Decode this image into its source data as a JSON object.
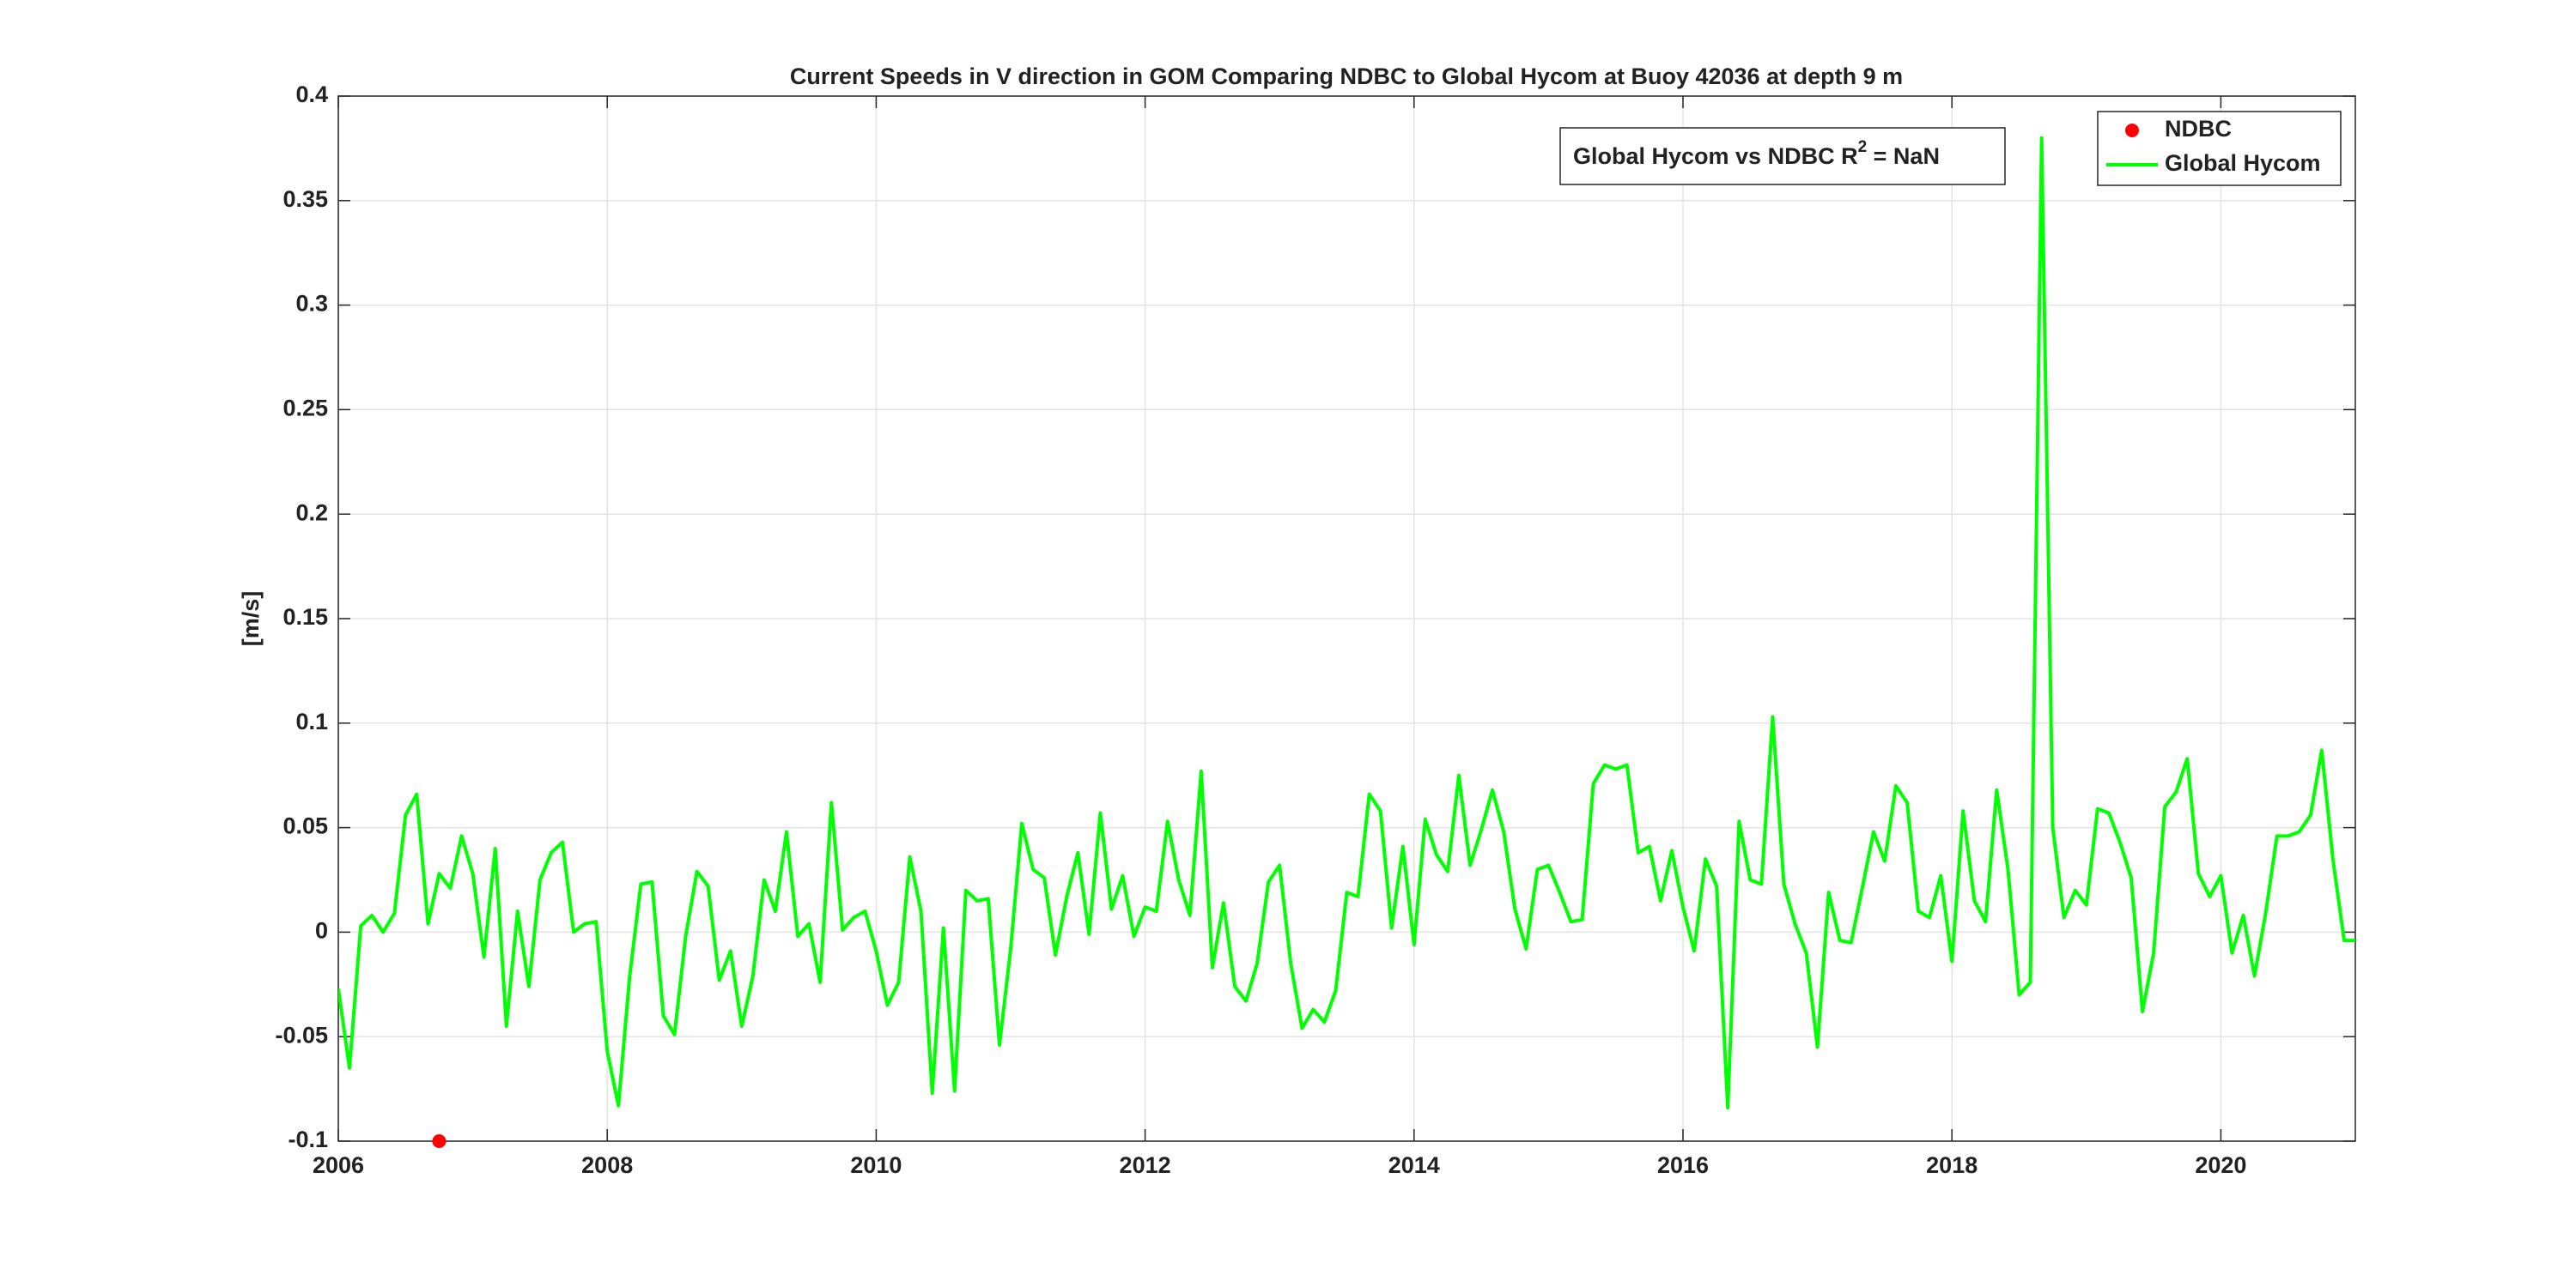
{
  "chart_data": {
    "type": "line",
    "title": "Current Speeds in V direction in GOM Comparing NDBC to Global Hycom at Buoy  42036  at depth  9 m",
    "y_label": "[m/s]",
    "annotation": {
      "text": "Global Hycom vs NDBC R",
      "superscript": "2",
      "suffix": " = NaN"
    },
    "xlim": [
      2006,
      2021
    ],
    "xticks": [
      2006,
      2008,
      2010,
      2012,
      2014,
      2016,
      2018,
      2020
    ],
    "ylim": [
      -0.1,
      0.4
    ],
    "yticks": [
      -0.1,
      -0.05,
      0,
      0.05,
      0.1,
      0.15,
      0.2,
      0.25,
      0.3,
      0.35,
      0.4
    ],
    "grid": true,
    "legend": "top-right",
    "series": [
      {
        "name": "NDBC",
        "color": "#ff0000",
        "style": "dot",
        "x": [
          2006.75
        ],
        "values": [
          -0.1
        ]
      },
      {
        "name": "Global Hycom",
        "color": "#00ff00",
        "style": "line",
        "x": [
          2006,
          2006.083,
          2006.167,
          2006.25,
          2006.333,
          2006.417,
          2006.5,
          2006.583,
          2006.667,
          2006.75,
          2006.833,
          2006.917,
          2007,
          2007.083,
          2007.167,
          2007.25,
          2007.333,
          2007.417,
          2007.5,
          2007.583,
          2007.667,
          2007.75,
          2007.833,
          2007.917,
          2008,
          2008.083,
          2008.167,
          2008.25,
          2008.333,
          2008.417,
          2008.5,
          2008.583,
          2008.667,
          2008.75,
          2008.833,
          2008.917,
          2009,
          2009.083,
          2009.167,
          2009.25,
          2009.333,
          2009.417,
          2009.5,
          2009.583,
          2009.667,
          2009.75,
          2009.833,
          2009.917,
          2010,
          2010.083,
          2010.167,
          2010.25,
          2010.333,
          2010.417,
          2010.5,
          2010.583,
          2010.667,
          2010.75,
          2010.833,
          2010.917,
          2011,
          2011.083,
          2011.167,
          2011.25,
          2011.333,
          2011.417,
          2011.5,
          2011.583,
          2011.667,
          2011.75,
          2011.833,
          2011.917,
          2012,
          2012.083,
          2012.167,
          2012.25,
          2012.333,
          2012.417,
          2012.5,
          2012.583,
          2012.667,
          2012.75,
          2012.833,
          2012.917,
          2013,
          2013.083,
          2013.167,
          2013.25,
          2013.333,
          2013.417,
          2013.5,
          2013.583,
          2013.667,
          2013.75,
          2013.833,
          2013.917,
          2014,
          2014.083,
          2014.167,
          2014.25,
          2014.333,
          2014.417,
          2014.5,
          2014.583,
          2014.667,
          2014.75,
          2014.833,
          2014.917,
          2015,
          2015.083,
          2015.167,
          2015.25,
          2015.333,
          2015.417,
          2015.5,
          2015.583,
          2015.667,
          2015.75,
          2015.833,
          2015.917,
          2016,
          2016.083,
          2016.167,
          2016.25,
          2016.333,
          2016.417,
          2016.5,
          2016.583,
          2016.667,
          2016.75,
          2016.833,
          2016.917,
          2017,
          2017.083,
          2017.167,
          2017.25,
          2017.333,
          2017.417,
          2017.5,
          2017.583,
          2017.667,
          2017.75,
          2017.833,
          2017.917,
          2018,
          2018.083,
          2018.167,
          2018.25,
          2018.333,
          2018.417,
          2018.5,
          2018.583,
          2018.667,
          2018.75,
          2018.833,
          2018.917,
          2019,
          2019.083,
          2019.167,
          2019.25,
          2019.333,
          2019.417,
          2019.5,
          2019.583,
          2019.667,
          2019.75,
          2019.833,
          2019.917,
          2020,
          2020.083,
          2020.167,
          2020.25,
          2020.333,
          2020.417,
          2020.5,
          2020.583,
          2020.667,
          2020.75,
          2020.833,
          2020.917,
          2021
        ],
        "values": [
          -0.027,
          -0.065,
          0.003,
          0.008,
          0.0,
          0.009,
          0.056,
          0.066,
          0.004,
          0.028,
          0.021,
          0.046,
          0.028,
          -0.012,
          0.04,
          -0.045,
          0.01,
          -0.026,
          0.025,
          0.038,
          0.043,
          0.0,
          0.004,
          0.005,
          -0.057,
          -0.083,
          -0.021,
          0.023,
          0.024,
          -0.04,
          -0.049,
          -0.002,
          0.029,
          0.022,
          -0.023,
          -0.009,
          -0.045,
          -0.021,
          0.025,
          0.01,
          0.048,
          -0.002,
          0.004,
          -0.024,
          0.062,
          0.001,
          0.007,
          0.01,
          -0.009,
          -0.035,
          -0.024,
          0.036,
          0.01,
          -0.077,
          0.002,
          -0.076,
          0.02,
          0.015,
          0.016,
          -0.054,
          -0.008,
          0.052,
          0.03,
          0.026,
          -0.011,
          0.017,
          0.038,
          -0.001,
          0.057,
          0.011,
          0.027,
          -0.002,
          0.012,
          0.01,
          0.053,
          0.025,
          0.008,
          0.077,
          -0.017,
          0.014,
          -0.026,
          -0.033,
          -0.015,
          0.024,
          0.032,
          -0.015,
          -0.046,
          -0.037,
          -0.043,
          -0.028,
          0.019,
          0.017,
          0.066,
          0.058,
          0.002,
          0.041,
          -0.006,
          0.054,
          0.037,
          0.029,
          0.075,
          0.032,
          0.049,
          0.068,
          0.048,
          0.011,
          -0.008,
          0.03,
          0.032,
          0.019,
          0.005,
          0.006,
          0.071,
          0.08,
          0.078,
          0.08,
          0.038,
          0.041,
          0.015,
          0.039,
          0.012,
          -0.009,
          0.035,
          0.022,
          -0.084,
          0.053,
          0.025,
          0.023,
          0.103,
          0.023,
          0.004,
          -0.01,
          -0.055,
          0.019,
          -0.004,
          -0.005,
          0.021,
          0.048,
          0.034,
          0.07,
          0.062,
          0.01,
          0.007,
          0.027,
          -0.014,
          0.058,
          0.015,
          0.005,
          0.068,
          0.03,
          -0.03,
          -0.024,
          0.38,
          0.05,
          0.007,
          0.02,
          0.013,
          0.059,
          0.057,
          0.043,
          0.026,
          -0.038,
          -0.01,
          0.06,
          0.067,
          0.083,
          0.028,
          0.017,
          0.027,
          -0.01,
          0.008,
          -0.021,
          0.009,
          0.046,
          0.046,
          0.048,
          0.056,
          0.087,
          0.035,
          -0.004,
          -0.004
        ]
      }
    ]
  }
}
